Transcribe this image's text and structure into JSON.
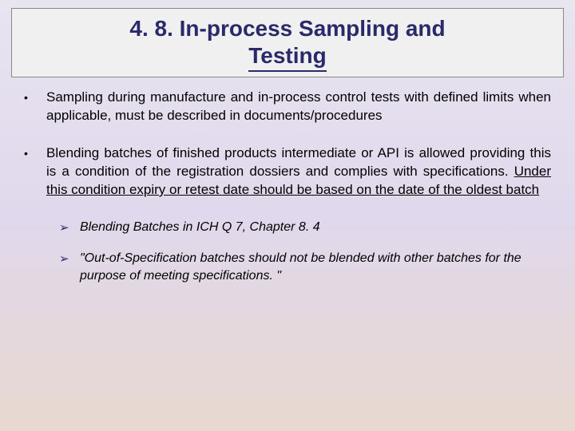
{
  "title": {
    "line1": "4. 8. In-process Sampling and",
    "line2": "Testing"
  },
  "bullets": [
    {
      "text_before": "Sampling during manufacture and in-process control tests with defined limits when applicable, must be described in documents/procedures",
      "underlined": "",
      "text_after": ""
    },
    {
      "text_before": "Blending batches of finished products intermediate or API is allowed providing this is a condition of the registration dossiers and complies with specifications. ",
      "underlined": "Under this condition expiry or retest date should be based on the date of the oldest batch",
      "text_after": ""
    }
  ],
  "sub_bullets": [
    {
      "text": "Blending Batches in ICH Q 7, Chapter 8. 4"
    },
    {
      "text": "\"Out-of-Specification batches should not be blended with other batches for the purpose of meeting specifications. \""
    }
  ],
  "colors": {
    "title_color": "#2a2a6a",
    "bg_top": "#e8e4f0",
    "bg_bottom": "#e8d8d0",
    "title_box_bg": "#f0f0f0",
    "sub_marker_color": "#2a2a6a"
  },
  "fonts": {
    "title_size": 28,
    "body_size": 17,
    "sub_size": 16
  }
}
